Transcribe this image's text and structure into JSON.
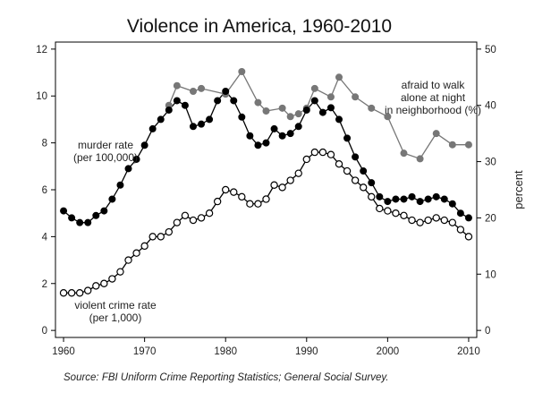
{
  "chart_data": {
    "type": "line",
    "title": "Violence in America, 1960-2010",
    "source": "Source: FBI Uniform Crime Reporting Statistics; General Social Survey.",
    "x_range": [
      1959,
      2011
    ],
    "x_ticks": [
      1960,
      1970,
      1980,
      1990,
      2000,
      2010
    ],
    "y_left": {
      "range": [
        -0.3,
        12.3
      ],
      "ticks": [
        0,
        2,
        4,
        6,
        8,
        10,
        12
      ],
      "label": ""
    },
    "y_right": {
      "range": [
        -1.25,
        51.25
      ],
      "ticks": [
        0,
        10,
        20,
        30,
        40,
        50
      ],
      "label": "percent"
    },
    "series": [
      {
        "name": "murder rate (per 100,000)",
        "label_lines": [
          "murder rate",
          "(per 100,000)"
        ],
        "axis": "left",
        "color": "#000000",
        "marker": "filled",
        "points": [
          [
            1960,
            5.1
          ],
          [
            1961,
            4.8
          ],
          [
            1962,
            4.6
          ],
          [
            1963,
            4.6
          ],
          [
            1964,
            4.9
          ],
          [
            1965,
            5.1
          ],
          [
            1966,
            5.6
          ],
          [
            1967,
            6.2
          ],
          [
            1968,
            6.9
          ],
          [
            1969,
            7.3
          ],
          [
            1970,
            7.9
          ],
          [
            1971,
            8.6
          ],
          [
            1972,
            9.0
          ],
          [
            1973,
            9.4
          ],
          [
            1974,
            9.8
          ],
          [
            1975,
            9.6
          ],
          [
            1976,
            8.7
          ],
          [
            1977,
            8.8
          ],
          [
            1978,
            9.0
          ],
          [
            1979,
            9.8
          ],
          [
            1980,
            10.2
          ],
          [
            1981,
            9.8
          ],
          [
            1982,
            9.1
          ],
          [
            1983,
            8.3
          ],
          [
            1984,
            7.9
          ],
          [
            1985,
            8.0
          ],
          [
            1986,
            8.6
          ],
          [
            1987,
            8.3
          ],
          [
            1988,
            8.4
          ],
          [
            1989,
            8.7
          ],
          [
            1990,
            9.4
          ],
          [
            1991,
            9.8
          ],
          [
            1992,
            9.3
          ],
          [
            1993,
            9.5
          ],
          [
            1994,
            9.0
          ],
          [
            1995,
            8.2
          ],
          [
            1996,
            7.4
          ],
          [
            1997,
            6.8
          ],
          [
            1998,
            6.3
          ],
          [
            1999,
            5.7
          ],
          [
            2000,
            5.5
          ],
          [
            2001,
            5.6
          ],
          [
            2002,
            5.6
          ],
          [
            2003,
            5.7
          ],
          [
            2004,
            5.5
          ],
          [
            2005,
            5.6
          ],
          [
            2006,
            5.7
          ],
          [
            2007,
            5.6
          ],
          [
            2008,
            5.4
          ],
          [
            2009,
            5.0
          ],
          [
            2010,
            4.8
          ]
        ]
      },
      {
        "name": "violent crime rate (per 1,000)",
        "label_lines": [
          "violent crime rate",
          "(per 1,000)"
        ],
        "axis": "left",
        "color": "#000000",
        "marker": "hollow",
        "points": [
          [
            1960,
            1.6
          ],
          [
            1961,
            1.6
          ],
          [
            1962,
            1.6
          ],
          [
            1963,
            1.7
          ],
          [
            1964,
            1.9
          ],
          [
            1965,
            2.0
          ],
          [
            1966,
            2.2
          ],
          [
            1967,
            2.5
          ],
          [
            1968,
            3.0
          ],
          [
            1969,
            3.3
          ],
          [
            1970,
            3.6
          ],
          [
            1971,
            4.0
          ],
          [
            1972,
            4.0
          ],
          [
            1973,
            4.2
          ],
          [
            1974,
            4.6
          ],
          [
            1975,
            4.9
          ],
          [
            1976,
            4.7
          ],
          [
            1977,
            4.8
          ],
          [
            1978,
            5.0
          ],
          [
            1979,
            5.5
          ],
          [
            1980,
            6.0
          ],
          [
            1981,
            5.9
          ],
          [
            1982,
            5.7
          ],
          [
            1983,
            5.4
          ],
          [
            1984,
            5.4
          ],
          [
            1985,
            5.6
          ],
          [
            1986,
            6.2
          ],
          [
            1987,
            6.1
          ],
          [
            1988,
            6.4
          ],
          [
            1989,
            6.7
          ],
          [
            1990,
            7.3
          ],
          [
            1991,
            7.6
          ],
          [
            1992,
            7.6
          ],
          [
            1993,
            7.5
          ],
          [
            1994,
            7.1
          ],
          [
            1995,
            6.8
          ],
          [
            1996,
            6.4
          ],
          [
            1997,
            6.1
          ],
          [
            1998,
            5.7
          ],
          [
            1999,
            5.2
          ],
          [
            2000,
            5.1
          ],
          [
            2001,
            5.0
          ],
          [
            2002,
            4.9
          ],
          [
            2003,
            4.7
          ],
          [
            2004,
            4.6
          ],
          [
            2005,
            4.7
          ],
          [
            2006,
            4.8
          ],
          [
            2007,
            4.7
          ],
          [
            2008,
            4.6
          ],
          [
            2009,
            4.3
          ],
          [
            2010,
            4.0
          ]
        ]
      },
      {
        "name": "afraid to walk alone at night in neighborhood (%)",
        "label_lines": [
          "afraid to walk",
          "alone at night",
          "in neighborhood (%)"
        ],
        "axis": "right",
        "color": "#777777",
        "marker": "filled",
        "points": [
          [
            1973,
            40
          ],
          [
            1974,
            43.5
          ],
          [
            1976,
            42.5
          ],
          [
            1977,
            43
          ],
          [
            1980,
            42
          ],
          [
            1982,
            46
          ],
          [
            1984,
            40.5
          ],
          [
            1985,
            39
          ],
          [
            1987,
            39.5
          ],
          [
            1988,
            38
          ],
          [
            1989,
            38.5
          ],
          [
            1990,
            39.5
          ],
          [
            1991,
            43
          ],
          [
            1993,
            41.5
          ],
          [
            1994,
            45
          ],
          [
            1996,
            41.5
          ],
          [
            1998,
            39.5
          ],
          [
            2000,
            38
          ],
          [
            2002,
            31.5
          ],
          [
            2004,
            30.5
          ],
          [
            2006,
            35
          ],
          [
            2008,
            33
          ],
          [
            2010,
            33
          ]
        ]
      }
    ]
  }
}
